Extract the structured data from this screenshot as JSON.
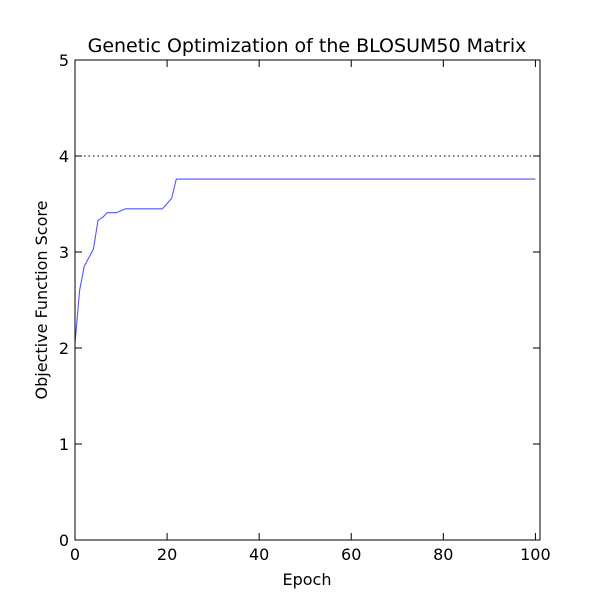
{
  "chart_data": {
    "type": "line",
    "title": "Genetic Optimization of the BLOSUM50 Matrix",
    "xlabel": "Epoch",
    "ylabel": "Objective Function Score",
    "xlim": [
      0,
      101
    ],
    "ylim": [
      0,
      5
    ],
    "xticks": [
      0,
      20,
      40,
      60,
      80,
      100
    ],
    "yticks": [
      0,
      1,
      2,
      3,
      4,
      5
    ],
    "xtick_labels": [
      "0",
      "20",
      "40",
      "60",
      "80",
      "100"
    ],
    "ytick_labels": [
      "0",
      "1",
      "2",
      "3",
      "4",
      "5"
    ],
    "grid": false,
    "series": [
      {
        "color": "#5555ff",
        "style": "solid",
        "x": [
          0,
          1,
          2,
          4,
          5,
          6,
          7,
          9,
          11,
          12,
          19,
          21,
          22,
          30,
          40,
          50,
          60,
          70,
          80,
          90,
          100
        ],
        "y": [
          2.05,
          2.6,
          2.85,
          3.03,
          3.33,
          3.36,
          3.41,
          3.41,
          3.45,
          3.45,
          3.45,
          3.56,
          3.76,
          3.76,
          3.76,
          3.76,
          3.76,
          3.76,
          3.76,
          3.76,
          3.76
        ]
      }
    ],
    "reference_lines": [
      {
        "axis": "y",
        "value": 4,
        "color": "#000000",
        "style": "dotted"
      }
    ]
  }
}
